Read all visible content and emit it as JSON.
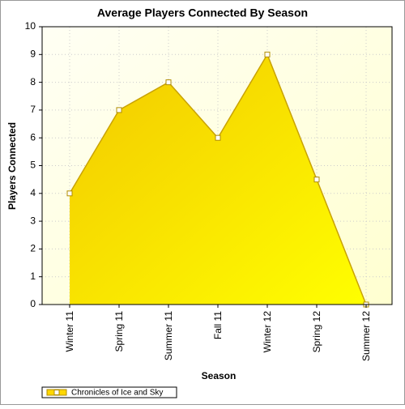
{
  "chart_data": {
    "type": "area",
    "title": "Average Players Connected By Season",
    "x_label": "Season",
    "y_label": "Players Connected",
    "categories": [
      "Winter 11",
      "Spring 11",
      "Summer 11",
      "Fall 11",
      "Winter 12",
      "Spring 12",
      "Summer 12"
    ],
    "series": [
      {
        "name": "Chronicles of Ice and Sky",
        "color": "#ffd700",
        "values": [
          4,
          7,
          8,
          6,
          9,
          4.5,
          0
        ]
      }
    ],
    "ylim": [
      0,
      10
    ],
    "yticks": [
      0,
      1,
      2,
      3,
      4,
      5,
      6,
      7,
      8,
      9,
      10
    ],
    "grid": true,
    "legend": "bottom-left"
  }
}
